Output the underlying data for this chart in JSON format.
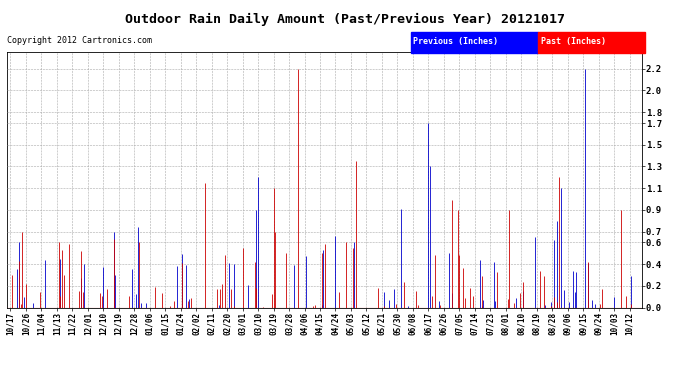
{
  "title": "Outdoor Rain Daily Amount (Past/Previous Year) 20121017",
  "copyright": "Copyright 2012 Cartronics.com",
  "legend_previous": "Previous (Inches)",
  "legend_past": "Past (Inches)",
  "previous_color": "#0000cc",
  "past_color": "#cc0000",
  "background_color": "#FFFFFF",
  "plot_bg_color": "#FFFFFF",
  "grid_color": "#AAAAAA",
  "yticks": [
    0.0,
    0.2,
    0.4,
    0.6,
    0.7,
    0.9,
    1.1,
    1.3,
    1.5,
    1.7,
    1.8,
    2.0,
    2.2
  ],
  "ylim": [
    0.0,
    2.35
  ],
  "start_date": "2011-10-17",
  "num_days": 366,
  "tick_dates": [
    "10/17",
    "10/26",
    "11/04",
    "11/13",
    "11/22",
    "12/01",
    "12/10",
    "12/19",
    "12/28",
    "01/06",
    "01/15",
    "01/24",
    "02/02",
    "02/11",
    "02/20",
    "03/01",
    "03/10",
    "03/19",
    "03/28",
    "04/06",
    "04/15",
    "04/24",
    "05/03",
    "05/12",
    "05/21",
    "05/30",
    "06/08",
    "06/17",
    "06/26",
    "07/05",
    "07/14",
    "07/23",
    "08/01",
    "08/10",
    "08/19",
    "08/28",
    "09/06",
    "09/15",
    "09/24",
    "10/03",
    "10/12"
  ],
  "seed_past": 10,
  "seed_prev": 20
}
